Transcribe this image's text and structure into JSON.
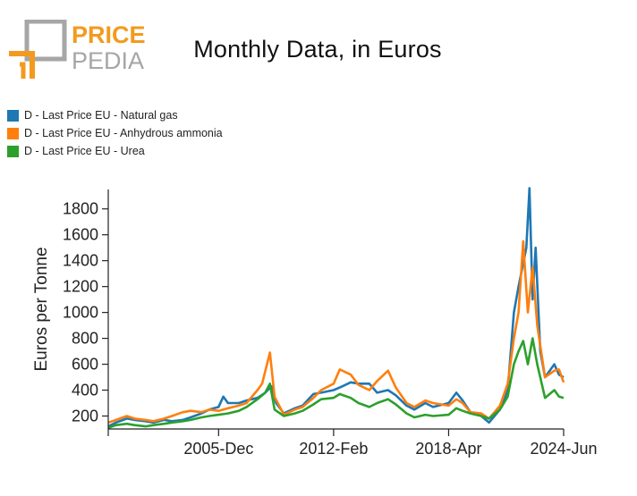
{
  "logo": {
    "line1": "PRICE",
    "line2": "PEDIA",
    "accent_color": "#f39a1e",
    "secondary_color": "#a6a6a6"
  },
  "chart_data": {
    "type": "line",
    "title": "Monthly Data, in Euros",
    "xlabel": "",
    "ylabel": "Euros per Tonne",
    "x_start": "2000-01",
    "x_end": "2024-06",
    "x_ticks": [
      "2005-Dec",
      "2012-Feb",
      "2018-Apr",
      "2024-Jun"
    ],
    "x_tick_dates": [
      "2005-12",
      "2012-02",
      "2018-04",
      "2024-06"
    ],
    "ylim": [
      100,
      1950
    ],
    "y_ticks": [
      200,
      400,
      600,
      800,
      1000,
      1200,
      1400,
      1600,
      1800
    ],
    "grid": false,
    "legend_position": "top-left",
    "series": [
      {
        "name": "D - Last Price EU - Natural gas",
        "color": "#1f77b4",
        "points": [
          [
            "2000-01",
            120
          ],
          [
            "2000-06",
            150
          ],
          [
            "2001-01",
            180
          ],
          [
            "2001-06",
            170
          ],
          [
            "2002-01",
            160
          ],
          [
            "2002-06",
            150
          ],
          [
            "2003-01",
            170
          ],
          [
            "2003-06",
            160
          ],
          [
            "2004-01",
            170
          ],
          [
            "2004-06",
            190
          ],
          [
            "2005-01",
            220
          ],
          [
            "2005-06",
            250
          ],
          [
            "2005-12",
            270
          ],
          [
            "2006-03",
            350
          ],
          [
            "2006-06",
            300
          ],
          [
            "2007-01",
            300
          ],
          [
            "2007-06",
            320
          ],
          [
            "2008-01",
            340
          ],
          [
            "2008-06",
            380
          ],
          [
            "2008-10",
            430
          ],
          [
            "2009-01",
            300
          ],
          [
            "2009-06",
            220
          ],
          [
            "2010-01",
            260
          ],
          [
            "2010-06",
            280
          ],
          [
            "2011-01",
            370
          ],
          [
            "2011-06",
            380
          ],
          [
            "2012-02",
            400
          ],
          [
            "2012-06",
            420
          ],
          [
            "2013-01",
            460
          ],
          [
            "2013-06",
            450
          ],
          [
            "2014-01",
            450
          ],
          [
            "2014-06",
            380
          ],
          [
            "2015-01",
            400
          ],
          [
            "2015-06",
            360
          ],
          [
            "2016-01",
            280
          ],
          [
            "2016-06",
            250
          ],
          [
            "2017-01",
            300
          ],
          [
            "2017-06",
            270
          ],
          [
            "2018-04",
            300
          ],
          [
            "2018-09",
            380
          ],
          [
            "2019-01",
            320
          ],
          [
            "2019-06",
            230
          ],
          [
            "2020-01",
            200
          ],
          [
            "2020-06",
            150
          ],
          [
            "2021-01",
            250
          ],
          [
            "2021-06",
            400
          ],
          [
            "2021-10",
            1000
          ],
          [
            "2022-01",
            1200
          ],
          [
            "2022-06",
            1500
          ],
          [
            "2022-08",
            1960
          ],
          [
            "2022-10",
            1100
          ],
          [
            "2022-12",
            1500
          ],
          [
            "2023-03",
            700
          ],
          [
            "2023-06",
            500
          ],
          [
            "2023-12",
            600
          ],
          [
            "2024-03",
            520
          ],
          [
            "2024-06",
            500
          ]
        ]
      },
      {
        "name": "D - Last Price EU - Anhydrous ammonia",
        "color": "#ff7f0e",
        "points": [
          [
            "2000-01",
            150
          ],
          [
            "2000-06",
            170
          ],
          [
            "2001-01",
            200
          ],
          [
            "2001-06",
            180
          ],
          [
            "2002-01",
            170
          ],
          [
            "2002-06",
            160
          ],
          [
            "2003-01",
            180
          ],
          [
            "2003-06",
            200
          ],
          [
            "2004-01",
            230
          ],
          [
            "2004-06",
            240
          ],
          [
            "2005-01",
            230
          ],
          [
            "2005-06",
            250
          ],
          [
            "2005-12",
            240
          ],
          [
            "2006-06",
            260
          ],
          [
            "2007-01",
            280
          ],
          [
            "2007-06",
            300
          ],
          [
            "2008-01",
            400
          ],
          [
            "2008-04",
            450
          ],
          [
            "2008-09",
            690
          ],
          [
            "2008-12",
            350
          ],
          [
            "2009-06",
            210
          ],
          [
            "2010-01",
            250
          ],
          [
            "2010-06",
            270
          ],
          [
            "2011-01",
            340
          ],
          [
            "2011-06",
            400
          ],
          [
            "2012-02",
            450
          ],
          [
            "2012-06",
            560
          ],
          [
            "2013-01",
            520
          ],
          [
            "2013-06",
            440
          ],
          [
            "2014-01",
            400
          ],
          [
            "2014-06",
            470
          ],
          [
            "2015-01",
            550
          ],
          [
            "2015-06",
            420
          ],
          [
            "2016-01",
            300
          ],
          [
            "2016-06",
            270
          ],
          [
            "2017-01",
            320
          ],
          [
            "2017-06",
            300
          ],
          [
            "2018-04",
            280
          ],
          [
            "2018-09",
            330
          ],
          [
            "2019-01",
            300
          ],
          [
            "2019-06",
            230
          ],
          [
            "2020-01",
            220
          ],
          [
            "2020-06",
            180
          ],
          [
            "2021-01",
            280
          ],
          [
            "2021-06",
            450
          ],
          [
            "2021-10",
            800
          ],
          [
            "2022-01",
            1000
          ],
          [
            "2022-04",
            1550
          ],
          [
            "2022-07",
            1000
          ],
          [
            "2022-10",
            1350
          ],
          [
            "2023-01",
            900
          ],
          [
            "2023-06",
            500
          ],
          [
            "2023-12",
            550
          ],
          [
            "2024-03",
            560
          ],
          [
            "2024-06",
            460
          ]
        ]
      },
      {
        "name": "D - Last Price EU - Urea",
        "color": "#2ca02c",
        "points": [
          [
            "2000-01",
            110
          ],
          [
            "2000-06",
            130
          ],
          [
            "2001-01",
            140
          ],
          [
            "2001-06",
            130
          ],
          [
            "2002-01",
            120
          ],
          [
            "2002-06",
            130
          ],
          [
            "2003-01",
            140
          ],
          [
            "2003-06",
            150
          ],
          [
            "2004-01",
            160
          ],
          [
            "2004-06",
            170
          ],
          [
            "2005-01",
            190
          ],
          [
            "2005-06",
            200
          ],
          [
            "2005-12",
            210
          ],
          [
            "2006-06",
            220
          ],
          [
            "2007-01",
            240
          ],
          [
            "2007-06",
            270
          ],
          [
            "2008-01",
            330
          ],
          [
            "2008-06",
            380
          ],
          [
            "2008-09",
            450
          ],
          [
            "2008-12",
            250
          ],
          [
            "2009-06",
            200
          ],
          [
            "2010-01",
            220
          ],
          [
            "2010-06",
            240
          ],
          [
            "2011-01",
            290
          ],
          [
            "2011-06",
            330
          ],
          [
            "2012-02",
            340
          ],
          [
            "2012-06",
            370
          ],
          [
            "2013-01",
            340
          ],
          [
            "2013-06",
            300
          ],
          [
            "2014-01",
            270
          ],
          [
            "2014-06",
            300
          ],
          [
            "2015-01",
            330
          ],
          [
            "2015-06",
            290
          ],
          [
            "2016-01",
            220
          ],
          [
            "2016-06",
            190
          ],
          [
            "2017-01",
            210
          ],
          [
            "2017-06",
            200
          ],
          [
            "2018-04",
            210
          ],
          [
            "2018-09",
            260
          ],
          [
            "2019-01",
            240
          ],
          [
            "2019-06",
            220
          ],
          [
            "2020-01",
            200
          ],
          [
            "2020-06",
            180
          ],
          [
            "2021-01",
            250
          ],
          [
            "2021-06",
            350
          ],
          [
            "2021-10",
            600
          ],
          [
            "2022-01",
            700
          ],
          [
            "2022-04",
            780
          ],
          [
            "2022-07",
            600
          ],
          [
            "2022-10",
            800
          ],
          [
            "2023-01",
            600
          ],
          [
            "2023-06",
            340
          ],
          [
            "2023-12",
            400
          ],
          [
            "2024-03",
            350
          ],
          [
            "2024-06",
            340
          ]
        ]
      }
    ]
  }
}
